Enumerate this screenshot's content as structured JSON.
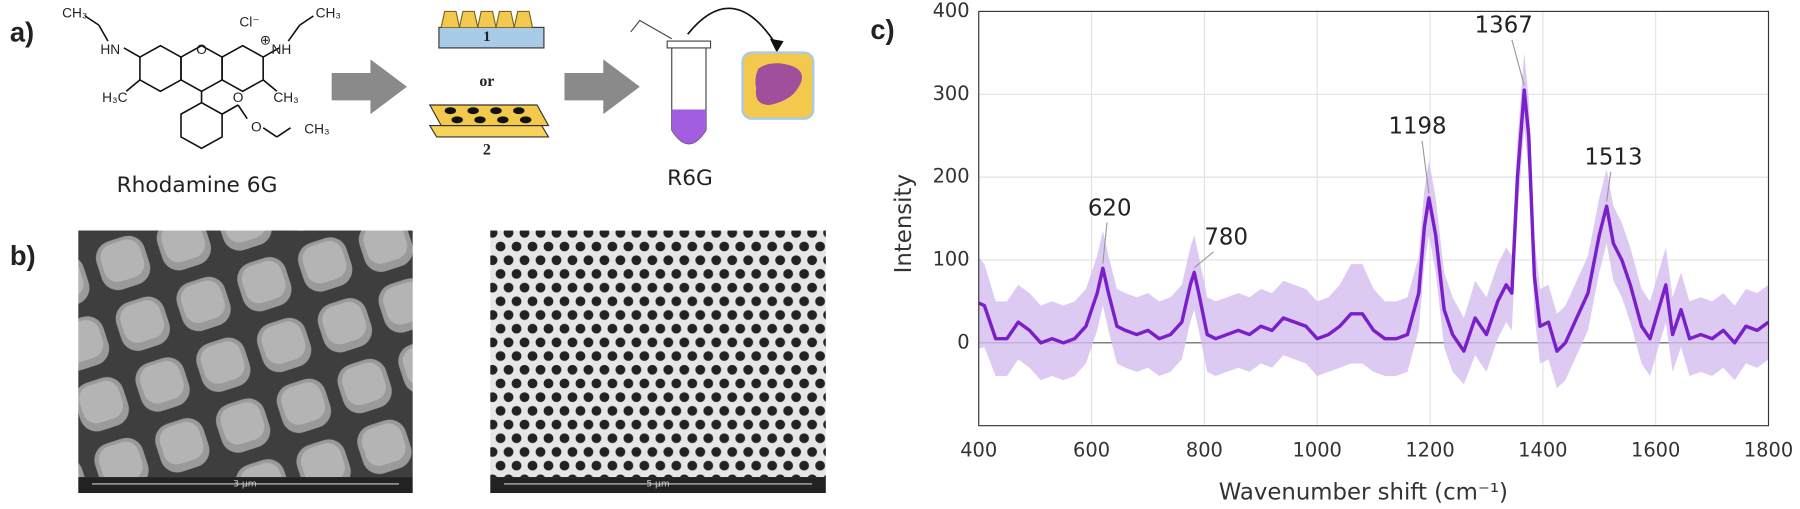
{
  "panels": {
    "a": "a)",
    "b": "b)",
    "c": "c)"
  },
  "scheme": {
    "molecule_name": "Rhodamine 6G",
    "product": "R6G",
    "substrate_1": "1",
    "or": "or",
    "substrate_2": "2",
    "atoms": [
      "HN",
      "NH",
      "Cl⁻",
      "H₃C",
      "CH₃",
      "O",
      "O",
      "O",
      "CH₃",
      "CH₃",
      "CH₃",
      "⊕"
    ]
  },
  "sem": {
    "scale_1": "3 µm",
    "scale_2": "5 µm"
  },
  "chart_data": {
    "type": "line",
    "x_label": "Wavenumber shift (cm⁻¹)",
    "y_label": "Intensity",
    "x": [
      400,
      410,
      430,
      450,
      470,
      490,
      510,
      530,
      550,
      570,
      590,
      610,
      620,
      630,
      645,
      660,
      680,
      700,
      720,
      740,
      760,
      775,
      782,
      790,
      805,
      820,
      840,
      860,
      880,
      900,
      920,
      940,
      960,
      980,
      1000,
      1020,
      1040,
      1060,
      1080,
      1100,
      1120,
      1140,
      1160,
      1180,
      1190,
      1198,
      1210,
      1225,
      1240,
      1260,
      1280,
      1300,
      1320,
      1335,
      1345,
      1355,
      1367,
      1375,
      1385,
      1395,
      1410,
      1425,
      1440,
      1460,
      1480,
      1500,
      1513,
      1525,
      1540,
      1555,
      1575,
      1590,
      1605,
      1618,
      1630,
      1645,
      1660,
      1680,
      1700,
      1720,
      1740,
      1760,
      1780,
      1800
    ],
    "series": [
      {
        "color": "#7a1fc9",
        "band_color": "#d4bdf0",
        "values": [
          48,
          45,
          5,
          5,
          25,
          15,
          0,
          5,
          0,
          5,
          20,
          60,
          90,
          60,
          20,
          15,
          10,
          15,
          5,
          10,
          25,
          70,
          85,
          60,
          10,
          5,
          10,
          15,
          10,
          20,
          15,
          30,
          25,
          20,
          5,
          10,
          20,
          35,
          35,
          15,
          5,
          5,
          10,
          60,
          140,
          175,
          130,
          40,
          10,
          -10,
          30,
          10,
          50,
          70,
          60,
          200,
          305,
          250,
          80,
          20,
          25,
          -10,
          0,
          30,
          60,
          130,
          165,
          120,
          100,
          70,
          20,
          5,
          40,
          70,
          10,
          40,
          5,
          10,
          5,
          15,
          0,
          20,
          15,
          25
        ],
        "spread": [
          55,
          50,
          45,
          45,
          45,
          45,
          45,
          45,
          45,
          45,
          45,
          45,
          45,
          45,
          45,
          45,
          45,
          45,
          45,
          45,
          45,
          45,
          45,
          45,
          45,
          45,
          45,
          45,
          45,
          45,
          45,
          45,
          45,
          45,
          45,
          45,
          50,
          60,
          60,
          50,
          45,
          45,
          45,
          45,
          45,
          45,
          45,
          45,
          45,
          40,
          45,
          45,
          45,
          45,
          45,
          45,
          45,
          45,
          45,
          45,
          45,
          45,
          45,
          45,
          45,
          45,
          45,
          45,
          45,
          45,
          45,
          45,
          45,
          45,
          45,
          45,
          45,
          45,
          45,
          45,
          45,
          45,
          45,
          45
        ]
      }
    ],
    "xlim": [
      400,
      1800
    ],
    "ylim": [
      -100,
      400
    ],
    "xticks": [
      400,
      600,
      800,
      1000,
      1200,
      1400,
      1600,
      1800
    ],
    "yticks": [
      0,
      100,
      200,
      300,
      400
    ],
    "grid": true,
    "annotations": [
      {
        "text": "620",
        "x": 620,
        "y": 90
      },
      {
        "text": "780",
        "x": 782,
        "y": 85
      },
      {
        "text": "1198",
        "x": 1198,
        "y": 175
      },
      {
        "text": "1367",
        "x": 1367,
        "y": 305
      },
      {
        "text": "1513",
        "x": 1513,
        "y": 165
      }
    ]
  }
}
